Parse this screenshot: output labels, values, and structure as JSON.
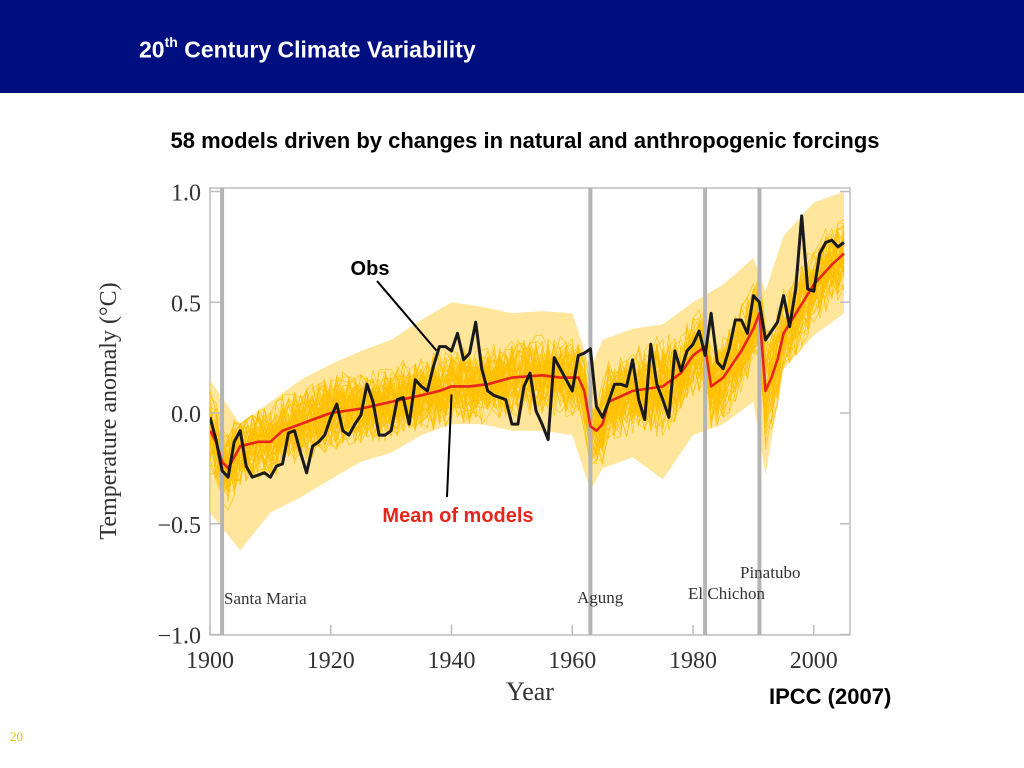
{
  "slide": {
    "title_main": "20",
    "title_sup": "th",
    "title_rest": " Century Climate Variability",
    "subtitle": "58 models driven by changes in natural and anthropogenic forcings",
    "source": "IPCC (2007)",
    "page_number": "20",
    "header_color": "#000f7f"
  },
  "chart_data": {
    "type": "line",
    "title": "",
    "xlabel": "Year",
    "ylabel": "Temperature anomaly (°C)",
    "xlim": [
      1900,
      2006
    ],
    "ylim": [
      -1.0,
      1.0
    ],
    "x_ticks": [
      1900,
      1920,
      1940,
      1960,
      1980,
      2000
    ],
    "x_tick_labels": [
      "1900",
      "1920",
      "1940",
      "1960",
      "1980",
      "2000"
    ],
    "y_ticks": [
      1.0,
      0.5,
      0.0,
      -0.5,
      -1.0
    ],
    "y_tick_labels": [
      "1.0",
      "0.5",
      "0.0",
      "−0.5",
      "−1.0"
    ],
    "grid": false,
    "colors": {
      "ensemble": "#ffc000",
      "ensemble_band": "#ffd24a",
      "obs": "#1a1a1a",
      "mean": "#e8251c",
      "volcano_line": "#b4b4b4"
    },
    "volcanic_eruptions": [
      {
        "label": "Santa Maria",
        "year": 1902
      },
      {
        "label": "Agung",
        "year": 1963
      },
      {
        "label": "El Chichon",
        "year": 1982
      },
      {
        "label": "Pinatubo",
        "year": 1991
      }
    ],
    "annotations": [
      {
        "label": "Obs",
        "points_to_year": 1938,
        "points_to_value": 0.3,
        "color": "#000000"
      },
      {
        "label": "Mean of models",
        "points_to_year": 1940,
        "points_to_value": 0.12,
        "color": "#e8251c"
      }
    ],
    "ensemble_envelope": {
      "name": "",
      "x": [
        1900,
        1905,
        1910,
        1915,
        1920,
        1925,
        1930,
        1935,
        1940,
        1945,
        1950,
        1955,
        1960,
        1963,
        1965,
        1970,
        1975,
        1980,
        1985,
        1990,
        1992,
        1995,
        2000,
        2005
      ],
      "upper": [
        0.15,
        -0.05,
        0.05,
        0.15,
        0.22,
        0.28,
        0.33,
        0.42,
        0.5,
        0.48,
        0.45,
        0.46,
        0.45,
        0.2,
        0.33,
        0.38,
        0.4,
        0.5,
        0.58,
        0.7,
        0.55,
        0.8,
        0.95,
        1.0
      ],
      "lower": [
        -0.45,
        -0.62,
        -0.45,
        -0.38,
        -0.3,
        -0.22,
        -0.18,
        -0.1,
        -0.05,
        -0.05,
        -0.08,
        -0.08,
        -0.1,
        -0.35,
        -0.25,
        -0.2,
        -0.3,
        -0.1,
        -0.05,
        0.05,
        -0.28,
        0.2,
        0.35,
        0.45
      ]
    },
    "series": [
      {
        "name": "Obs",
        "x": [
          1900,
          1901,
          1902,
          1903,
          1904,
          1905,
          1906,
          1907,
          1908,
          1909,
          1910,
          1911,
          1912,
          1913,
          1914,
          1915,
          1916,
          1917,
          1918,
          1919,
          1920,
          1921,
          1922,
          1923,
          1924,
          1925,
          1926,
          1927,
          1928,
          1929,
          1930,
          1931,
          1932,
          1933,
          1934,
          1935,
          1936,
          1937,
          1938,
          1939,
          1940,
          1941,
          1942,
          1943,
          1944,
          1945,
          1946,
          1947,
          1948,
          1949,
          1950,
          1951,
          1952,
          1953,
          1954,
          1955,
          1956,
          1957,
          1958,
          1959,
          1960,
          1961,
          1962,
          1963,
          1964,
          1965,
          1966,
          1967,
          1968,
          1969,
          1970,
          1971,
          1972,
          1973,
          1974,
          1975,
          1976,
          1977,
          1978,
          1979,
          1980,
          1981,
          1982,
          1983,
          1984,
          1985,
          1986,
          1987,
          1988,
          1989,
          1990,
          1991,
          1992,
          1993,
          1994,
          1995,
          1996,
          1997,
          1998,
          1999,
          2000,
          2001,
          2002,
          2003,
          2004,
          2005
        ],
        "values": [
          -0.02,
          -0.12,
          -0.26,
          -0.29,
          -0.13,
          -0.08,
          -0.24,
          -0.29,
          -0.28,
          -0.27,
          -0.29,
          -0.24,
          -0.23,
          -0.09,
          -0.08,
          -0.18,
          -0.27,
          -0.15,
          -0.13,
          -0.1,
          -0.02,
          0.04,
          -0.08,
          -0.1,
          -0.05,
          -0.01,
          0.13,
          0.05,
          -0.1,
          -0.1,
          -0.08,
          0.06,
          0.07,
          -0.05,
          0.15,
          0.12,
          0.1,
          0.21,
          0.3,
          0.3,
          0.28,
          0.36,
          0.24,
          0.27,
          0.41,
          0.2,
          0.1,
          0.08,
          0.07,
          0.06,
          -0.05,
          -0.05,
          0.12,
          0.18,
          0.01,
          -0.05,
          -0.12,
          0.25,
          0.2,
          0.15,
          0.1,
          0.26,
          0.27,
          0.29,
          0.03,
          -0.02,
          0.05,
          0.13,
          0.13,
          0.12,
          0.24,
          0.06,
          -0.03,
          0.31,
          0.13,
          0.06,
          -0.02,
          0.28,
          0.19,
          0.28,
          0.31,
          0.37,
          0.26,
          0.45,
          0.23,
          0.2,
          0.29,
          0.42,
          0.42,
          0.36,
          0.53,
          0.5,
          0.33,
          0.37,
          0.41,
          0.53,
          0.39,
          0.56,
          0.89,
          0.56,
          0.55,
          0.72,
          0.77,
          0.78,
          0.75,
          0.77
        ]
      },
      {
        "name": "Mean of models",
        "x": [
          1900,
          1901,
          1902,
          1903,
          1904,
          1905,
          1908,
          1910,
          1912,
          1915,
          1918,
          1920,
          1925,
          1930,
          1935,
          1938,
          1940,
          1943,
          1946,
          1950,
          1955,
          1958,
          1961,
          1962,
          1963,
          1964,
          1965,
          1966,
          1970,
          1975,
          1978,
          1980,
          1982,
          1983,
          1984,
          1985,
          1988,
          1990,
          1991,
          1992,
          1993,
          1994,
          1995,
          2000,
          2003,
          2005
        ],
        "values": [
          -0.08,
          -0.13,
          -0.22,
          -0.25,
          -0.2,
          -0.15,
          -0.13,
          -0.13,
          -0.08,
          -0.05,
          -0.02,
          0.0,
          0.02,
          0.05,
          0.08,
          0.1,
          0.12,
          0.12,
          0.13,
          0.16,
          0.17,
          0.16,
          0.16,
          0.1,
          -0.06,
          -0.08,
          -0.05,
          0.05,
          0.1,
          0.12,
          0.18,
          0.26,
          0.3,
          0.12,
          0.14,
          0.16,
          0.28,
          0.38,
          0.45,
          0.1,
          0.16,
          0.24,
          0.36,
          0.58,
          0.67,
          0.72
        ]
      }
    ]
  }
}
